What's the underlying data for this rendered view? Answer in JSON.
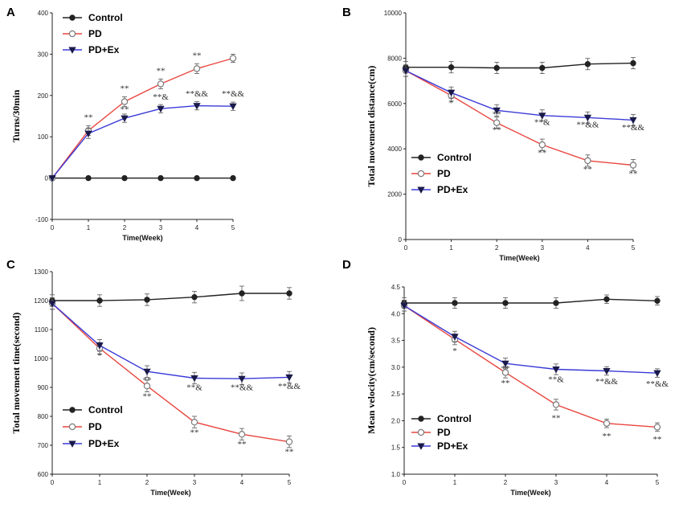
{
  "colors": {
    "control": "#222222",
    "pd": "#e8463f",
    "pdex": "#3b3bd8"
  },
  "chart_data": [
    {
      "panel": "A",
      "type": "line",
      "xlabel": "Time(Week)",
      "ylabel": "Turns/30min",
      "xlim": [
        0,
        5
      ],
      "ylim": [
        -100,
        400
      ],
      "xticks": [
        0,
        1,
        2,
        3,
        4,
        5
      ],
      "yticks": [
        -100,
        0,
        100,
        200,
        300,
        400
      ],
      "legend": "top-left",
      "series": [
        {
          "name": "Control",
          "key": "control",
          "x": [
            0,
            1,
            2,
            3,
            4,
            5
          ],
          "values": [
            0,
            0,
            0,
            0,
            0,
            0
          ],
          "err": [
            0,
            0,
            0,
            0,
            0,
            0
          ]
        },
        {
          "name": "PD",
          "key": "pd",
          "x": [
            0,
            1,
            2,
            3,
            4,
            5
          ],
          "values": [
            0,
            115,
            185,
            228,
            265,
            290
          ],
          "err": [
            0,
            12,
            12,
            12,
            12,
            10
          ]
        },
        {
          "name": "PD+Ex",
          "key": "pdex",
          "x": [
            0,
            1,
            2,
            3,
            4,
            5
          ],
          "values": [
            0,
            108,
            145,
            168,
            175,
            174
          ],
          "err": [
            0,
            12,
            10,
            10,
            10,
            10
          ]
        }
      ],
      "annotations": [
        {
          "x": 1,
          "y": 140,
          "text": "**"
        },
        {
          "x": 2,
          "y": 210,
          "text": "**"
        },
        {
          "x": 2,
          "y": 160,
          "text": "**"
        },
        {
          "x": 3,
          "y": 253,
          "text": "**"
        },
        {
          "x": 3,
          "y": 190,
          "text": "**&"
        },
        {
          "x": 4,
          "y": 290,
          "text": "**"
        },
        {
          "x": 4,
          "y": 198,
          "text": "**&&"
        },
        {
          "x": 5,
          "y": 198,
          "text": "**&&"
        }
      ]
    },
    {
      "panel": "B",
      "type": "line",
      "xlabel": "Time(Week)",
      "ylabel": "Total movement distance(cm)",
      "xlim": [
        0,
        5
      ],
      "ylim": [
        0,
        10000
      ],
      "xticks": [
        0,
        1,
        2,
        3,
        4,
        5
      ],
      "yticks": [
        0,
        2000,
        4000,
        6000,
        8000,
        10000
      ],
      "legend": "bottom-left",
      "series": [
        {
          "name": "Control",
          "key": "control",
          "x": [
            0,
            1,
            2,
            3,
            4,
            5
          ],
          "values": [
            7600,
            7600,
            7570,
            7570,
            7740,
            7780
          ],
          "err": [
            250,
            250,
            250,
            250,
            250,
            250
          ]
        },
        {
          "name": "PD",
          "key": "pd",
          "x": [
            0,
            1,
            2,
            3,
            4,
            5
          ],
          "values": [
            7450,
            6350,
            5150,
            4180,
            3480,
            3280
          ],
          "err": [
            250,
            250,
            250,
            250,
            250,
            250
          ]
        },
        {
          "name": "PD+Ex",
          "key": "pdex",
          "x": [
            0,
            1,
            2,
            3,
            4,
            5
          ],
          "values": [
            7450,
            6480,
            5700,
            5470,
            5380,
            5270
          ],
          "err": [
            250,
            250,
            250,
            250,
            250,
            250
          ]
        }
      ],
      "annotations": [
        {
          "x": 1,
          "y": 5900,
          "text": "*"
        },
        {
          "x": 2,
          "y": 5400,
          "text": "**"
        },
        {
          "x": 2,
          "y": 4720,
          "text": "**"
        },
        {
          "x": 3,
          "y": 5050,
          "text": "**&"
        },
        {
          "x": 3,
          "y": 3700,
          "text": "**"
        },
        {
          "x": 4,
          "y": 4950,
          "text": "**&&"
        },
        {
          "x": 4,
          "y": 2980,
          "text": "**"
        },
        {
          "x": 5,
          "y": 4830,
          "text": "**&&"
        },
        {
          "x": 5,
          "y": 2780,
          "text": "**"
        }
      ]
    },
    {
      "panel": "C",
      "type": "line",
      "xlabel": "Time(Week)",
      "ylabel": "Total movement time(second)",
      "xlim": [
        0,
        5
      ],
      "ylim": [
        600,
        1300
      ],
      "xticks": [
        0,
        1,
        2,
        3,
        4,
        5
      ],
      "yticks": [
        600,
        700,
        800,
        900,
        1000,
        1100,
        1200,
        1300
      ],
      "legend": "bottom-left",
      "series": [
        {
          "name": "Control",
          "key": "control",
          "x": [
            0,
            1,
            2,
            3,
            4,
            5
          ],
          "values": [
            1200,
            1200,
            1203,
            1212,
            1225,
            1225
          ],
          "err": [
            20,
            20,
            20,
            20,
            25,
            20
          ]
        },
        {
          "name": "PD",
          "key": "pd",
          "x": [
            0,
            1,
            2,
            3,
            4,
            5
          ],
          "values": [
            1190,
            1035,
            905,
            780,
            738,
            712
          ],
          "err": [
            20,
            20,
            20,
            20,
            20,
            20
          ]
        },
        {
          "name": "PD+Ex",
          "key": "pdex",
          "x": [
            0,
            1,
            2,
            3,
            4,
            5
          ],
          "values": [
            1190,
            1045,
            955,
            932,
            930,
            935
          ],
          "err": [
            20,
            20,
            20,
            20,
            20,
            20
          ]
        }
      ],
      "annotations": [
        {
          "x": 1,
          "y": 1000,
          "text": "*"
        },
        {
          "x": 2,
          "y": 915,
          "text": "**"
        },
        {
          "x": 2,
          "y": 860,
          "text": "**"
        },
        {
          "x": 3,
          "y": 890,
          "text": "**&"
        },
        {
          "x": 3,
          "y": 735,
          "text": "**"
        },
        {
          "x": 4,
          "y": 890,
          "text": "**&&"
        },
        {
          "x": 4,
          "y": 695,
          "text": "**"
        },
        {
          "x": 5,
          "y": 895,
          "text": "**&&"
        },
        {
          "x": 5,
          "y": 668,
          "text": "**"
        }
      ]
    },
    {
      "panel": "D",
      "type": "line",
      "xlabel": "Time(Week)",
      "ylabel": "Mean velocity(cm/second)",
      "xlim": [
        0,
        5
      ],
      "ylim": [
        1.0,
        4.5
      ],
      "xticks": [
        0,
        1,
        2,
        3,
        4,
        5
      ],
      "yticks": [
        "1.0",
        "1.5",
        "2.0",
        "2.5",
        "3.0",
        "3.5",
        "4.0",
        "4.5"
      ],
      "legend": "bottom-left",
      "series": [
        {
          "name": "Control",
          "key": "control",
          "x": [
            0,
            1,
            2,
            3,
            4,
            5
          ],
          "values": [
            4.2,
            4.2,
            4.2,
            4.2,
            4.27,
            4.24
          ],
          "err": [
            0.1,
            0.1,
            0.1,
            0.1,
            0.08,
            0.08
          ]
        },
        {
          "name": "PD",
          "key": "pd",
          "x": [
            0,
            1,
            2,
            3,
            4,
            5
          ],
          "values": [
            4.15,
            3.52,
            2.9,
            2.3,
            1.95,
            1.88
          ],
          "err": [
            0.1,
            0.1,
            0.1,
            0.1,
            0.08,
            0.08
          ]
        },
        {
          "name": "PD+Ex",
          "key": "pdex",
          "x": [
            0,
            1,
            2,
            3,
            4,
            5
          ],
          "values": [
            4.15,
            3.57,
            3.07,
            2.96,
            2.93,
            2.89
          ],
          "err": [
            0.1,
            0.1,
            0.1,
            0.1,
            0.08,
            0.08
          ]
        }
      ],
      "annotations": [
        {
          "x": 1,
          "y": 3.25,
          "text": "*"
        },
        {
          "x": 2,
          "y": 2.92,
          "text": "**"
        },
        {
          "x": 2,
          "y": 2.65,
          "text": "**"
        },
        {
          "x": 3,
          "y": 2.72,
          "text": "**&"
        },
        {
          "x": 3,
          "y": 2.0,
          "text": "**"
        },
        {
          "x": 4,
          "y": 2.68,
          "text": "**&&"
        },
        {
          "x": 4,
          "y": 1.66,
          "text": "**"
        },
        {
          "x": 5,
          "y": 2.64,
          "text": "**&&"
        },
        {
          "x": 5,
          "y": 1.6,
          "text": "**"
        }
      ]
    }
  ]
}
